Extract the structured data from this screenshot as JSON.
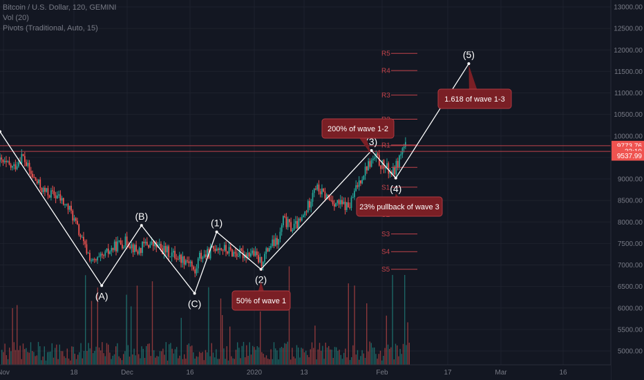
{
  "legend": {
    "symbol": "Bitcoin / U.S. Dollar, 120, GEMINI",
    "vol": "Vol (20)",
    "pivots": "Pivots (Traditional, Auto, 15)"
  },
  "colors": {
    "background": "#131722",
    "grid": "#1e222d",
    "up": "#26a69a",
    "down": "#ef5350",
    "pivot": "#c2434b",
    "annotation_fill": "#7a1f25",
    "annotation_border": "#b03a41",
    "wave_line": "#ffffff"
  },
  "chart_data": {
    "type": "candlestick",
    "y_axis": {
      "ticks": [
        "13000.00",
        "12500.00",
        "12000.00",
        "11500.00",
        "11000.00",
        "10500.00",
        "10000.00",
        "9500.00",
        "9000.00",
        "8500.00",
        "8000.00",
        "7500.00",
        "7000.00",
        "6500.00",
        "6000.00",
        "5500.00",
        "5000.00"
      ],
      "ylim": [
        4800,
        13150
      ]
    },
    "x_axis": {
      "ticks": [
        "Nov",
        "18",
        "Dec",
        "16",
        "2020",
        "13",
        "Feb",
        "17",
        "Mar",
        "16"
      ]
    },
    "price_tags": [
      {
        "value": 9773.76,
        "label": "9773.76"
      },
      {
        "value": 9640,
        "label": "33:19"
      },
      {
        "value": 9537.99,
        "label": "9537.99"
      }
    ],
    "horizontal_lines": [
      9773.76,
      9640
    ],
    "pivots": [
      {
        "label": "R5",
        "value": 11920
      },
      {
        "label": "R4",
        "value": 11520
      },
      {
        "label": "R3",
        "value": 10950
      },
      {
        "label": "R2",
        "value": 10390
      },
      {
        "label": "R1",
        "value": 9790
      },
      {
        "label": "P",
        "value": 9270
      },
      {
        "label": "S1",
        "value": 8810
      },
      {
        "label": "S2",
        "value": 8170
      },
      {
        "label": "S3",
        "value": 7720
      },
      {
        "label": "S4",
        "value": 7310
      },
      {
        "label": "S5",
        "value": 6900
      }
    ],
    "waves": [
      {
        "label": "",
        "date_pos": 0.0,
        "value": 10100
      },
      {
        "label": "(A)",
        "date_pos": 23,
        "value": 6520
      },
      {
        "label": "(B)",
        "date_pos": 32,
        "value": 7920
      },
      {
        "label": "(C)",
        "date_pos": 44,
        "value": 6340
      },
      {
        "label": "(1)",
        "date_pos": 49,
        "value": 7770
      },
      {
        "label": "(2)",
        "date_pos": 59,
        "value": 6900
      },
      {
        "label": "(3)",
        "date_pos": 84,
        "value": 9660
      },
      {
        "label": "(4)",
        "date_pos": 89.5,
        "value": 9020
      },
      {
        "label": "(5)",
        "date_pos": 106,
        "value": 11680
      }
    ],
    "annotations": [
      {
        "text": "50% of wave 1",
        "wave": "(2)"
      },
      {
        "text": "200% of wave 1-2",
        "wave": "(3)"
      },
      {
        "text": "23% pullback of wave 3",
        "wave": "(4)"
      },
      {
        "text": "1.618 of wave 1-3",
        "wave": "(5)"
      }
    ],
    "price_path": [
      [
        0,
        9400
      ],
      [
        3,
        9250
      ],
      [
        5,
        9550
      ],
      [
        7,
        9100
      ],
      [
        10,
        8700
      ],
      [
        13,
        8600
      ],
      [
        16,
        8250
      ],
      [
        19,
        7450
      ],
      [
        21,
        7050
      ],
      [
        23,
        7150
      ],
      [
        25,
        7350
      ],
      [
        27,
        7500
      ],
      [
        29,
        7550
      ],
      [
        31,
        7300
      ],
      [
        33,
        7500
      ],
      [
        35,
        7450
      ],
      [
        37,
        7350
      ],
      [
        39,
        7250
      ],
      [
        41,
        7150
      ],
      [
        43,
        7100
      ],
      [
        44,
        6750
      ],
      [
        45,
        7200
      ],
      [
        47,
        7250
      ],
      [
        49,
        7450
      ],
      [
        51,
        7350
      ],
      [
        53,
        7280
      ],
      [
        55,
        7250
      ],
      [
        57,
        7300
      ],
      [
        59,
        7050
      ],
      [
        61,
        7450
      ],
      [
        63,
        7550
      ],
      [
        64,
        8050
      ],
      [
        66,
        7850
      ],
      [
        68,
        8000
      ],
      [
        70,
        8450
      ],
      [
        71,
        8850
      ],
      [
        73,
        8650
      ],
      [
        75,
        8500
      ],
      [
        77,
        8400
      ],
      [
        79,
        8350
      ],
      [
        81,
        8900
      ],
      [
        83,
        9300
      ],
      [
        85,
        9500
      ],
      [
        86,
        9350
      ],
      [
        88,
        9200
      ],
      [
        89,
        9150
      ],
      [
        90,
        9400
      ],
      [
        91,
        9700
      ],
      [
        92,
        9800
      ]
    ]
  }
}
